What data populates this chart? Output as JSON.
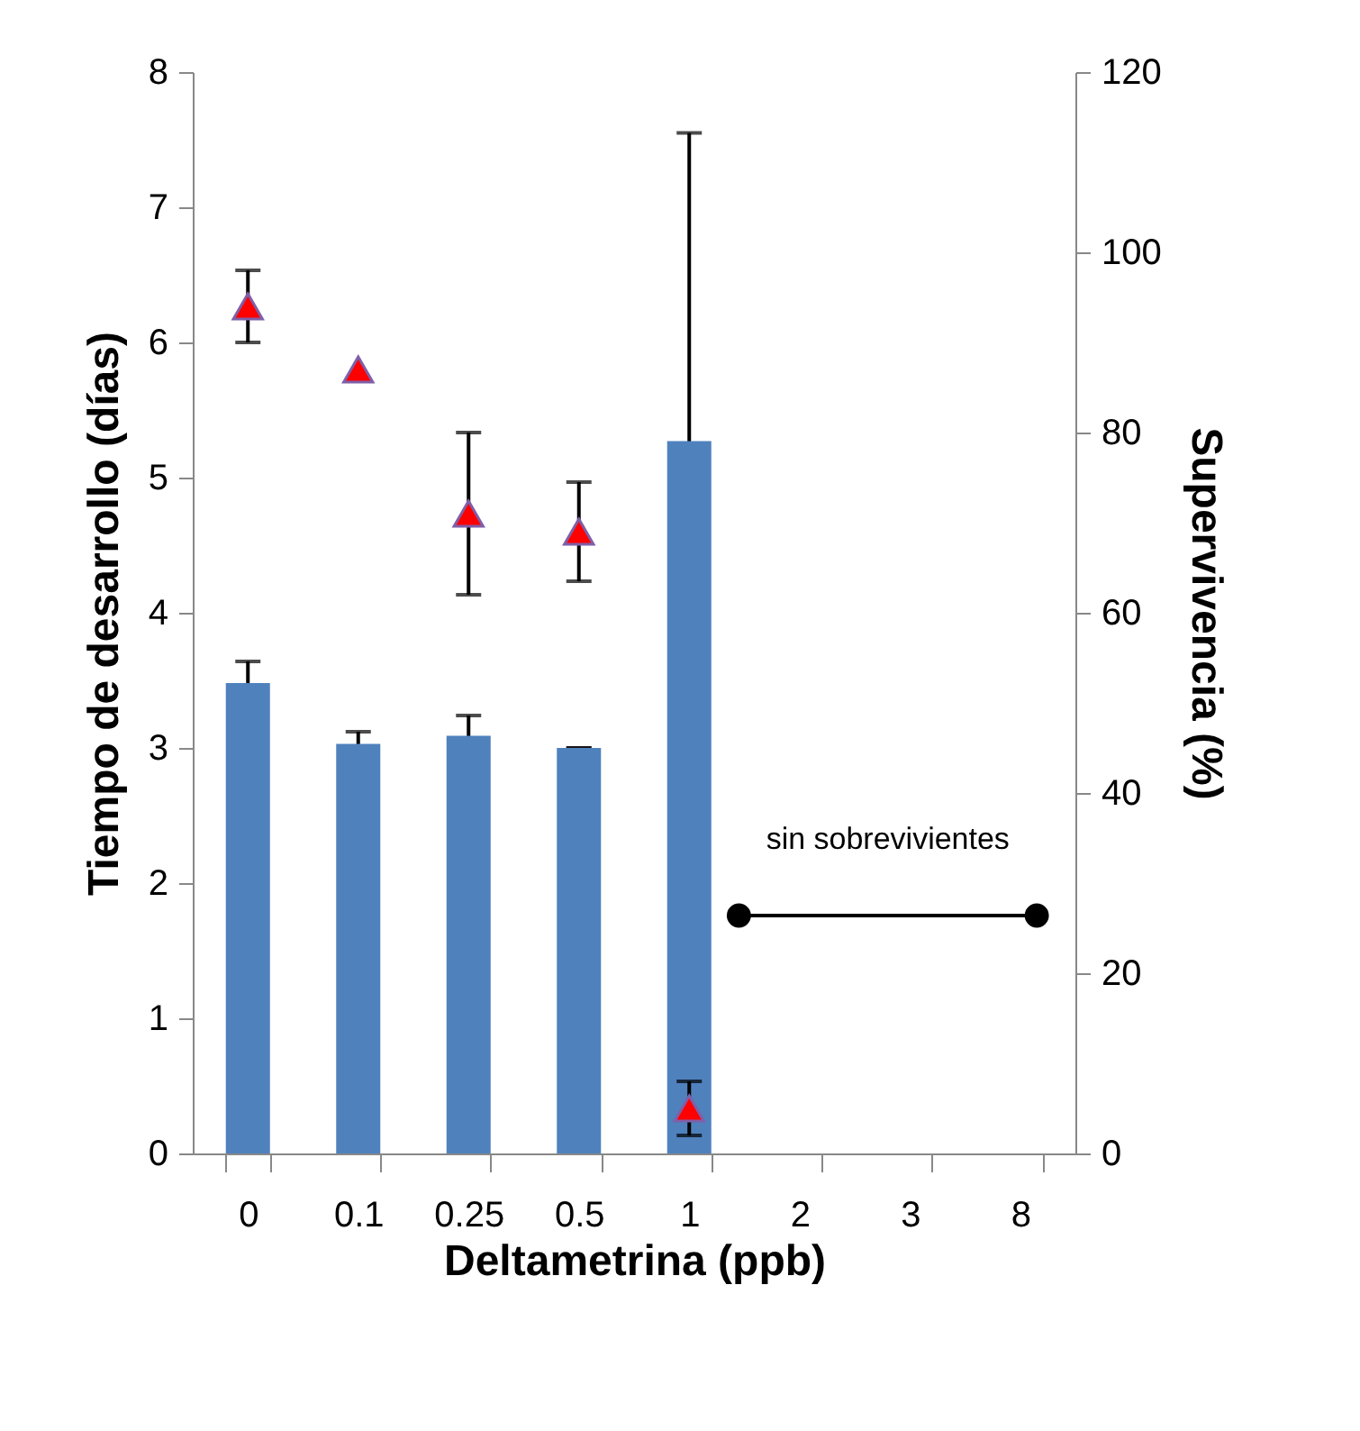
{
  "chart_data": {
    "type": "bar",
    "xlabel": "Deltametrina (ppb)",
    "ylabel": "Tiempo de desarrollo (días)",
    "y2label": "Supervivencia (%)",
    "categories": [
      "0",
      "0.1",
      "0.25",
      "0.5",
      "1",
      "2",
      "3",
      "8"
    ],
    "series": [
      {
        "color": "#4f81bd",
        "values": [
          3.48,
          3.03,
          3.09,
          3.0,
          5.27,
          null,
          null,
          null
        ],
        "errors": [
          0.16,
          0.09,
          0.15,
          0,
          2.28,
          null,
          null,
          null
        ]
      },
      {
        "type": "scatter",
        "axis": "y2",
        "marker": "triangle",
        "color": "#ff0000",
        "values": [
          94,
          87,
          71,
          69,
          5,
          null,
          null,
          null
        ],
        "errors": [
          4,
          null,
          9,
          5.5,
          3,
          null,
          null,
          null
        ]
      }
    ],
    "ylim": [
      0,
      8
    ],
    "yticks": [
      0,
      1,
      2,
      3,
      4,
      5,
      6,
      7,
      8
    ],
    "y2lim": [
      0,
      120
    ],
    "y2ticks": [
      0,
      20,
      40,
      60,
      80,
      100,
      120
    ],
    "annotations": [
      "sin sobrevivientes"
    ]
  }
}
